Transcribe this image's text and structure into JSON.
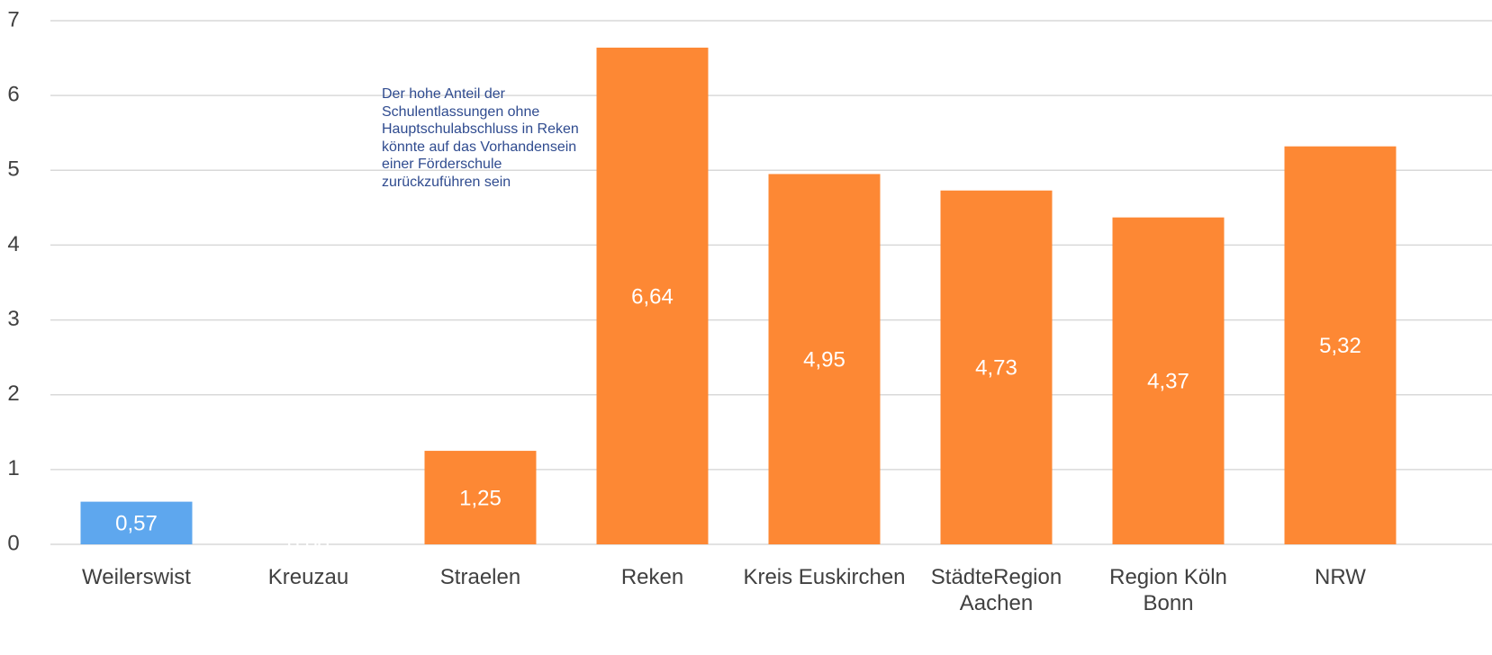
{
  "chart_data": {
    "type": "bar",
    "categories": [
      "Weilerswist",
      "Kreuzau",
      "Straelen",
      "Reken",
      "Kreis Euskirchen",
      "StädteRegion Aachen",
      "Region Köln Bonn",
      "NRW"
    ],
    "values": [
      0.57,
      0,
      1.25,
      6.64,
      4.95,
      4.73,
      4.37,
      5.32
    ],
    "value_labels": [
      "0,57",
      "0,00",
      "1,25",
      "6,64",
      "4,95",
      "4,73",
      "4,37",
      "5,32"
    ],
    "colors": [
      "#5ea7ee",
      "#fd8834",
      "#fd8834",
      "#fd8834",
      "#fd8834",
      "#fd8834",
      "#fd8834",
      "#fd8834"
    ],
    "ylim": [
      0,
      7
    ],
    "yticks": [
      0,
      1,
      2,
      3,
      4,
      5,
      6,
      7
    ],
    "grid": true,
    "annotation": "Der hohe Anteil der Schulentlassungen ohne Hauptschulabschluss in Reken könnte auf das Vorhandensein einer Förderschule zurückzuführen sein"
  }
}
